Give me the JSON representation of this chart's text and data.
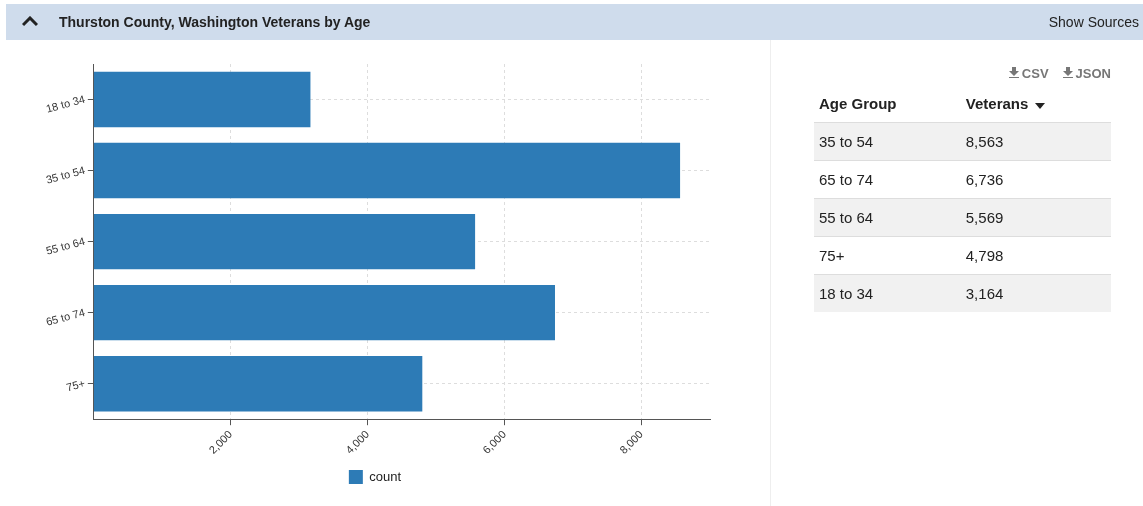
{
  "chart_data": [
    {
      "type": "bar",
      "orientation": "horizontal",
      "title": "Thurston County, Washington Veterans by Age",
      "categories": [
        "18 to 34",
        "35 to 54",
        "55 to 64",
        "65 to 74",
        "75+"
      ],
      "series": [
        {
          "name": "count",
          "color": "#2d7bb6",
          "values": [
            3164,
            8563,
            5569,
            6736,
            4798
          ]
        }
      ],
      "xlim": [
        0,
        9000
      ],
      "xticks": [
        {
          "value": 2000,
          "label": "2,000"
        },
        {
          "value": 4000,
          "label": "4,000"
        },
        {
          "value": 6000,
          "label": "6,000"
        },
        {
          "value": 8000,
          "label": "8,000"
        }
      ],
      "grid": true,
      "legend": "bottom",
      "annotations": [
        "Show Sources"
      ]
    },
    {
      "type": "other",
      "categories": [
        "35 to 54",
        "65 to 74",
        "55 to 64",
        "75+",
        "18 to 34"
      ],
      "value_labels": [
        "8,563",
        "6,736",
        "5,569",
        "4,798",
        "3,164"
      ],
      "annotations": [
        "CSV",
        "JSON",
        "Age Group",
        "Veterans"
      ]
    }
  ]
}
